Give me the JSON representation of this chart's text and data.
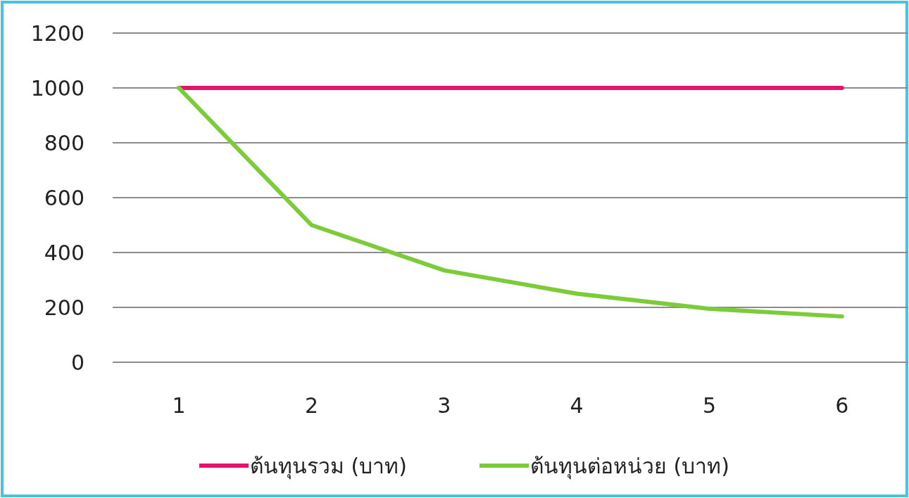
{
  "chart_data": {
    "type": "line",
    "categories": [
      "1",
      "2",
      "3",
      "4",
      "5",
      "6"
    ],
    "series": [
      {
        "name": "ต้นทุนรวม (บาท)",
        "color": "#e6126e",
        "values": [
          1000,
          1000,
          1000,
          1000,
          1000,
          1000
        ]
      },
      {
        "name": "ต้นทุนต่อหน่วย (บาท)",
        "color": "#7ccc3a",
        "values": [
          1000,
          500,
          335,
          250,
          195,
          167
        ]
      }
    ],
    "ylim": [
      0,
      1200
    ],
    "yticks": [
      0,
      200,
      400,
      600,
      800,
      1000,
      1200
    ],
    "grid": "y",
    "legend": "bottom",
    "marker": "none",
    "line_style": "solid"
  }
}
